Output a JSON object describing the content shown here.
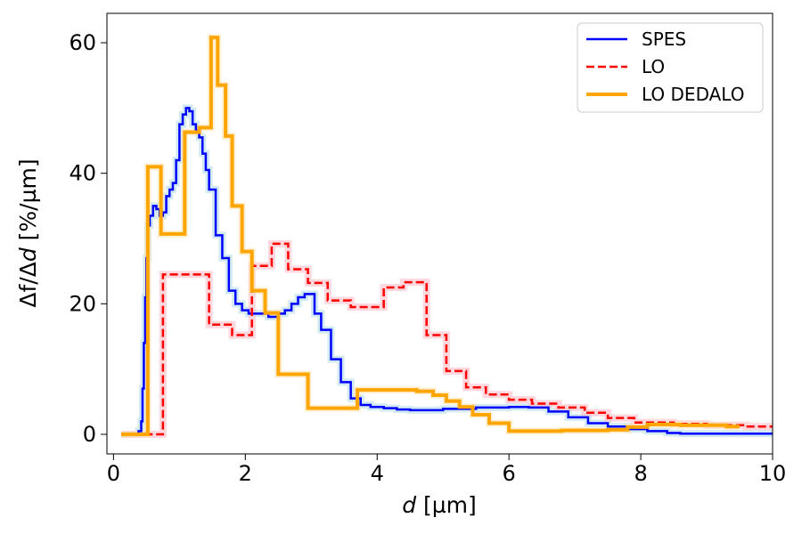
{
  "chart_data": {
    "type": "line",
    "xlabel_var": "d",
    "xlabel_unit": " [µm]",
    "ylabel_prefix": "Δf/Δ",
    "ylabel_var": "d",
    "ylabel_suffix": " [%/µm]",
    "xlim": [
      -0.1,
      10
    ],
    "ylim": [
      -3,
      64.5
    ],
    "xticks": [
      0,
      2,
      4,
      6,
      8,
      10
    ],
    "xtick_labels": [
      "0",
      "2",
      "4",
      "6",
      "8",
      "10"
    ],
    "yticks": [
      0,
      20,
      40,
      60
    ],
    "ytick_labels": [
      "0",
      "20",
      "40",
      "60"
    ],
    "grid": false,
    "legend_position": "top-right",
    "series": [
      {
        "name": "SPES",
        "color": "#0000ff",
        "style": "solid",
        "band_color": "#add8e6",
        "steps": [
          [
            0.12,
            0
          ],
          [
            0.38,
            0.5
          ],
          [
            0.42,
            2
          ],
          [
            0.44,
            7
          ],
          [
            0.46,
            14
          ],
          [
            0.48,
            21
          ],
          [
            0.5,
            27
          ],
          [
            0.52,
            32
          ],
          [
            0.55,
            33.5
          ],
          [
            0.6,
            35
          ],
          [
            0.65,
            34.5
          ],
          [
            0.7,
            33.5
          ],
          [
            0.75,
            34
          ],
          [
            0.8,
            36.5
          ],
          [
            0.85,
            37.5
          ],
          [
            0.9,
            38.5
          ],
          [
            0.95,
            42
          ],
          [
            1.0,
            47.5
          ],
          [
            1.05,
            49
          ],
          [
            1.1,
            50
          ],
          [
            1.15,
            49.5
          ],
          [
            1.2,
            47.5
          ],
          [
            1.25,
            46.5
          ],
          [
            1.3,
            45.5
          ],
          [
            1.35,
            43
          ],
          [
            1.4,
            40.5
          ],
          [
            1.45,
            37.5
          ],
          [
            1.55,
            30.5
          ],
          [
            1.65,
            27
          ],
          [
            1.75,
            22
          ],
          [
            1.85,
            20
          ],
          [
            1.95,
            19
          ],
          [
            2.05,
            18.5
          ],
          [
            2.2,
            18.5
          ],
          [
            2.35,
            18
          ],
          [
            2.5,
            18.5
          ],
          [
            2.6,
            19
          ],
          [
            2.7,
            20
          ],
          [
            2.8,
            21
          ],
          [
            2.9,
            21.5
          ],
          [
            3.05,
            18.5
          ],
          [
            3.15,
            16
          ],
          [
            3.3,
            11.5
          ],
          [
            3.45,
            8
          ],
          [
            3.6,
            5.5
          ],
          [
            3.75,
            4.5
          ],
          [
            3.9,
            4.2
          ],
          [
            4.1,
            4
          ],
          [
            4.3,
            3.8
          ],
          [
            4.5,
            3.7
          ],
          [
            5.0,
            3.9
          ],
          [
            5.5,
            4.1
          ],
          [
            6.0,
            4.2
          ],
          [
            6.3,
            4.1
          ],
          [
            6.6,
            3.5
          ],
          [
            6.9,
            2.6
          ],
          [
            7.2,
            1.7
          ],
          [
            7.5,
            1.2
          ],
          [
            7.8,
            0.8
          ],
          [
            8.1,
            0.5
          ],
          [
            8.4,
            0.2
          ],
          [
            8.6,
            0.1
          ]
        ],
        "end": 10
      },
      {
        "name": "LO",
        "color": "#ff0000",
        "style": "dashed",
        "band_color": "#ffb6c1",
        "steps": [
          [
            0.12,
            0
          ],
          [
            0.75,
            24.5
          ],
          [
            1.45,
            16.8
          ],
          [
            1.8,
            15.2
          ],
          [
            2.1,
            25.8
          ],
          [
            2.4,
            29.2
          ],
          [
            2.65,
            25.3
          ],
          [
            2.95,
            23.2
          ],
          [
            3.25,
            20.5
          ],
          [
            3.6,
            19.5
          ],
          [
            4.1,
            22.5
          ],
          [
            4.4,
            23.3
          ],
          [
            4.75,
            15.2
          ],
          [
            5.05,
            9.7
          ],
          [
            5.35,
            7.2
          ],
          [
            5.65,
            6.1
          ],
          [
            6.0,
            5.3
          ],
          [
            6.35,
            4.7
          ],
          [
            6.75,
            4.1
          ],
          [
            7.15,
            3.3
          ],
          [
            7.5,
            2.5
          ],
          [
            7.9,
            1.8
          ],
          [
            8.5,
            1.6
          ],
          [
            9.0,
            1.4
          ],
          [
            9.6,
            1.2
          ]
        ],
        "end": 10
      },
      {
        "name": "LO DEDALO",
        "color": "#ffa500",
        "style": "solid",
        "band_color": "#ffe4b5",
        "steps": [
          [
            0.12,
            0
          ],
          [
            0.52,
            41
          ],
          [
            0.72,
            30.7
          ],
          [
            1.08,
            46.3
          ],
          [
            1.3,
            47
          ],
          [
            1.48,
            60.8
          ],
          [
            1.58,
            53.5
          ],
          [
            1.7,
            45.7
          ],
          [
            1.8,
            35
          ],
          [
            1.95,
            28
          ],
          [
            2.1,
            22
          ],
          [
            2.3,
            18.6
          ],
          [
            2.5,
            9.2
          ],
          [
            2.95,
            4
          ],
          [
            3.7,
            6.8
          ],
          [
            4.6,
            6.6
          ],
          [
            4.85,
            6
          ],
          [
            5.05,
            5.1
          ],
          [
            5.25,
            4.2
          ],
          [
            5.45,
            3
          ],
          [
            5.7,
            1.7
          ],
          [
            6.0,
            0.5
          ],
          [
            6.8,
            0.6
          ],
          [
            7.5,
            0.7
          ],
          [
            7.8,
            1.1
          ],
          [
            8.1,
            1.5
          ],
          [
            8.6,
            1.4
          ],
          [
            9.3,
            1.2
          ]
        ],
        "end": 9.5
      }
    ]
  }
}
